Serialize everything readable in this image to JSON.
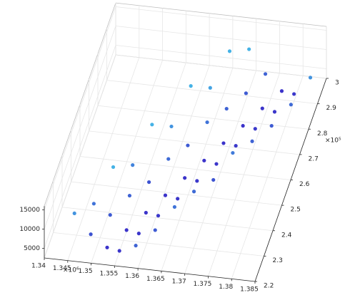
{
  "chart_data": {
    "type": "scatter3d",
    "x": [
      1344780,
      1348540,
      1352300,
      1355120,
      1358880,
      1347510,
      1351270,
      1355030,
      1357850,
      1361610,
      1350240,
      1354000,
      1357760,
      1360580,
      1364340,
      1352970,
      1356730,
      1360490,
      1363310,
      1367070,
      1355700,
      1359460,
      1363220,
      1366040,
      1369800,
      1358430,
      1362190,
      1365950,
      1368770,
      1372530,
      1361160,
      1364920,
      1368680,
      1371500,
      1375260,
      1363890,
      1367650,
      1371410,
      1374230,
      1377990,
      1366620,
      1370380,
      1374140,
      1376960,
      1380720,
      1369350,
      1373110,
      1376870,
      1379690,
      1383450
    ],
    "y": [
      228700,
      227300,
      225900,
      224850,
      223450,
      236110,
      234710,
      233310,
      232260,
      230860,
      243520,
      242120,
      240720,
      239670,
      238270,
      250930,
      249530,
      248130,
      247080,
      245680,
      258340,
      256940,
      255540,
      254490,
      253090,
      265750,
      264350,
      262950,
      261900,
      260500,
      273160,
      271760,
      270360,
      269310,
      267910,
      280570,
      279170,
      277770,
      276720,
      275320,
      287980,
      286580,
      285180,
      284130,
      282730,
      295390,
      293990,
      292590,
      291540,
      290140
    ],
    "z": [
      9000,
      5000,
      3000,
      3200,
      6000,
      7000,
      5500,
      3000,
      3200,
      5500,
      12000,
      6000,
      3000,
      3300,
      7000,
      8000,
      5000,
      3000,
      3200,
      6500,
      14000,
      6500,
      3000,
      3300,
      5000,
      9000,
      5500,
      3000,
      3200,
      7500,
      15000,
      7000,
      3000,
      3400,
      6000,
      10000,
      6000,
      3000,
      3300,
      5500,
      15000,
      5500,
      3000,
      3200,
      6500,
      11000,
      6000,
      3000,
      3300,
      9000
    ],
    "colors": [
      "#3a2bc8",
      "#45b2e6"
    ],
    "xlim": [
      1340000,
      1385000
    ],
    "ylim": [
      220000,
      300000
    ],
    "zlim": [
      2500,
      16000
    ],
    "xticks": [
      {
        "value": 1340000,
        "label": "1.34"
      },
      {
        "value": 1345000,
        "label": "1.345"
      },
      {
        "value": 1350000,
        "label": "1.35"
      },
      {
        "value": 1355000,
        "label": "1.355"
      },
      {
        "value": 1360000,
        "label": "1.36"
      },
      {
        "value": 1365000,
        "label": "1.365"
      },
      {
        "value": 1370000,
        "label": "1.37"
      },
      {
        "value": 1375000,
        "label": "1.375"
      },
      {
        "value": 1380000,
        "label": "1.38"
      },
      {
        "value": 1385000,
        "label": "1.385"
      }
    ],
    "yticks": [
      {
        "value": 220000,
        "label": "2.2"
      },
      {
        "value": 230000,
        "label": "2.3"
      },
      {
        "value": 240000,
        "label": "2.4"
      },
      {
        "value": 250000,
        "label": "2.5"
      },
      {
        "value": 260000,
        "label": "2.6"
      },
      {
        "value": 270000,
        "label": "2.7"
      },
      {
        "value": 280000,
        "label": "2.8"
      },
      {
        "value": 290000,
        "label": "2.9"
      },
      {
        "value": 300000,
        "label": "3"
      }
    ],
    "zticks": [
      5000,
      10000,
      15000
    ],
    "x_exponent": "×10⁶",
    "y_exponent": "×10⁵",
    "grid": true
  }
}
